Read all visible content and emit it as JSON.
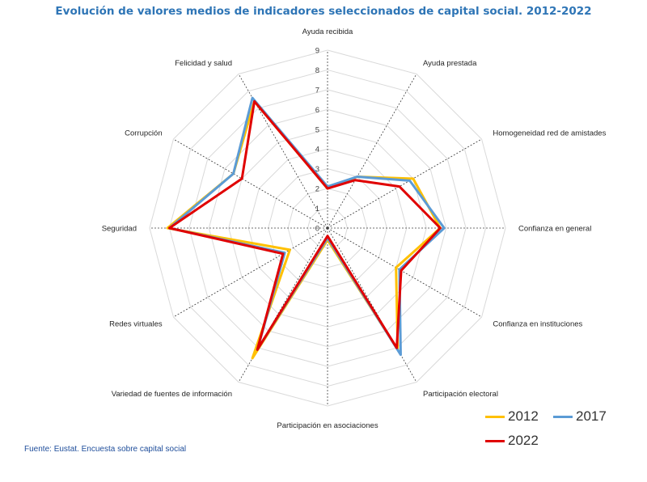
{
  "chart_data": {
    "type": "radar",
    "title": "Evolución de valores medios de indicadores seleccionados de capital social. 2012-2022",
    "source": "Fuente: Eustat. Encuesta sobre capital social",
    "axes": [
      "Ayuda recibida",
      "Ayuda prestada",
      "Homogeneidad red de amistades",
      "Confianza en general",
      "Confianza en instituciones",
      "Participación electoral",
      "Participación en asociaciones",
      "Variedad de fuentes de información",
      "Redes virtuales",
      "Seguridad",
      "Corrupción",
      "Felicidad y salud"
    ],
    "scale_ticks": [
      "0",
      "1",
      "2",
      "3",
      "4",
      "5",
      "6",
      "7",
      "8",
      "9"
    ],
    "rmax": 9,
    "grid": true,
    "legend_position": "bottom-right",
    "series": [
      {
        "name": "2012",
        "color": "#ffc000",
        "values": [
          2.0,
          3.0,
          5.0,
          5.7,
          4.0,
          7.1,
          0.6,
          7.6,
          2.2,
          8.1,
          5.5,
          7.4
        ]
      },
      {
        "name": "2017",
        "color": "#5b9bd5",
        "values": [
          2.1,
          3.0,
          4.8,
          5.9,
          4.2,
          7.4,
          0.5,
          7.1,
          2.5,
          8.0,
          5.5,
          7.6
        ]
      },
      {
        "name": "2022",
        "color": "#e00000",
        "values": [
          2.0,
          2.8,
          4.2,
          5.7,
          4.3,
          7.0,
          0.4,
          7.1,
          2.6,
          8.0,
          5.0,
          7.4
        ]
      }
    ]
  }
}
